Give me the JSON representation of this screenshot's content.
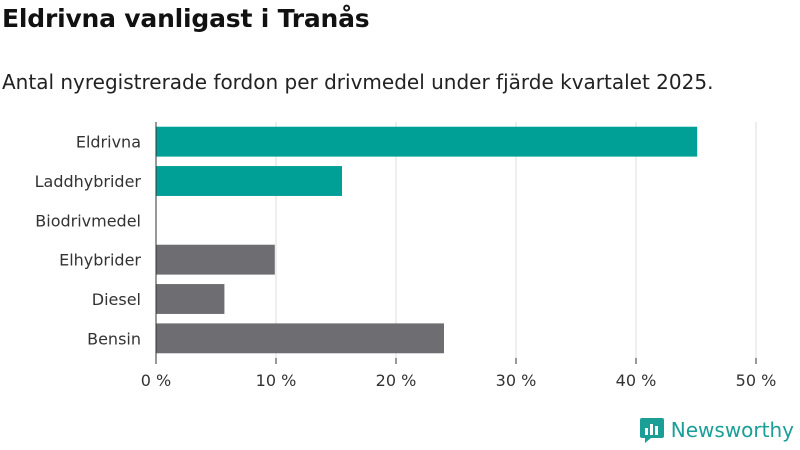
{
  "chart_data": {
    "type": "bar",
    "orientation": "horizontal",
    "title": "Eldrivna vanligast i Tranås",
    "subtitle": "Antal nyregistrerade fordon per drivmedel under fjärde kvartalet 2025.",
    "categories": [
      "Eldrivna",
      "Laddhybrider",
      "Biodrivmedel",
      "Elhybrider",
      "Diesel",
      "Bensin"
    ],
    "values": [
      45.1,
      15.5,
      0,
      9.9,
      5.7,
      24.0
    ],
    "colors": [
      "#00a096",
      "#00a096",
      "#00a096",
      "#6d6d72",
      "#6d6d72",
      "#6d6d72"
    ],
    "xlim": [
      0,
      50
    ],
    "xticks": [
      0,
      10,
      20,
      30,
      40,
      50
    ],
    "xtick_labels": [
      "0 %",
      "10 %",
      "20 %",
      "30 %",
      "40 %",
      "50 %"
    ],
    "grid": true
  },
  "brand": {
    "name": "Newsworthy",
    "color": "#1a9e96",
    "icon": "newsworthy-logo-icon"
  }
}
